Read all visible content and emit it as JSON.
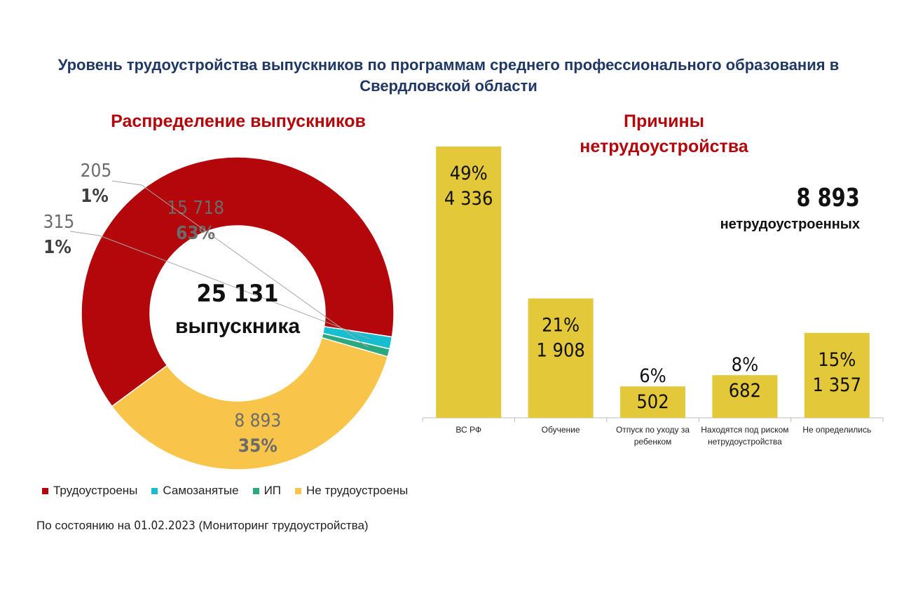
{
  "title": "Уровень трудоустройства выпускников по программам среднего профессионального образования в Свердловской области",
  "footnote": {
    "prefix": "По состоянию на ",
    "date": "01.02.2023",
    "suffix": " (Мониторинг трудоустройства)"
  },
  "kpi": {
    "value": "8 893",
    "label": "нетрудоустроенных"
  },
  "colors": {
    "title": "#1f3864",
    "subtitle": "#b3070b",
    "employed": "#b3070b",
    "self_employed": "#17becf",
    "ip": "#2ca87f",
    "unemployed": "#f9c44a",
    "bar": "#e3c83a"
  },
  "chart_data": [
    {
      "type": "pie",
      "title": "Распределение выпускников",
      "center_value": "25 131",
      "center_label": "выпускника",
      "legend_position": "bottom-left",
      "slices": [
        {
          "name": "Трудоустроены",
          "value": 15718,
          "value_label": "15 718",
          "percent_label": "63%",
          "color": "#b3070b"
        },
        {
          "name": "Самозанятые",
          "value": 315,
          "value_label": "315",
          "percent_label": "1%",
          "color": "#17becf"
        },
        {
          "name": "ИП",
          "value": 205,
          "value_label": "205",
          "percent_label": "1%",
          "color": "#2ca87f"
        },
        {
          "name": "Не трудоустроены",
          "value": 8893,
          "value_label": "8 893",
          "percent_label": "35%",
          "color": "#f9c44a"
        }
      ]
    },
    {
      "type": "bar",
      "title": "Причины нетрудоустройства",
      "categories": [
        "ВС РФ",
        "Обучение",
        "Отпуск по уходу за ребенком",
        "Находятся под риском нетрудоустройства",
        "Не определились"
      ],
      "values": [
        4336,
        1908,
        502,
        682,
        1357
      ],
      "value_labels": [
        "4 336",
        "1 908",
        "502",
        "682",
        "1 357"
      ],
      "percent_labels": [
        "49%",
        "21%",
        "6%",
        "8%",
        "15%"
      ],
      "ylim": [
        0,
        4336
      ],
      "grid": false
    }
  ]
}
